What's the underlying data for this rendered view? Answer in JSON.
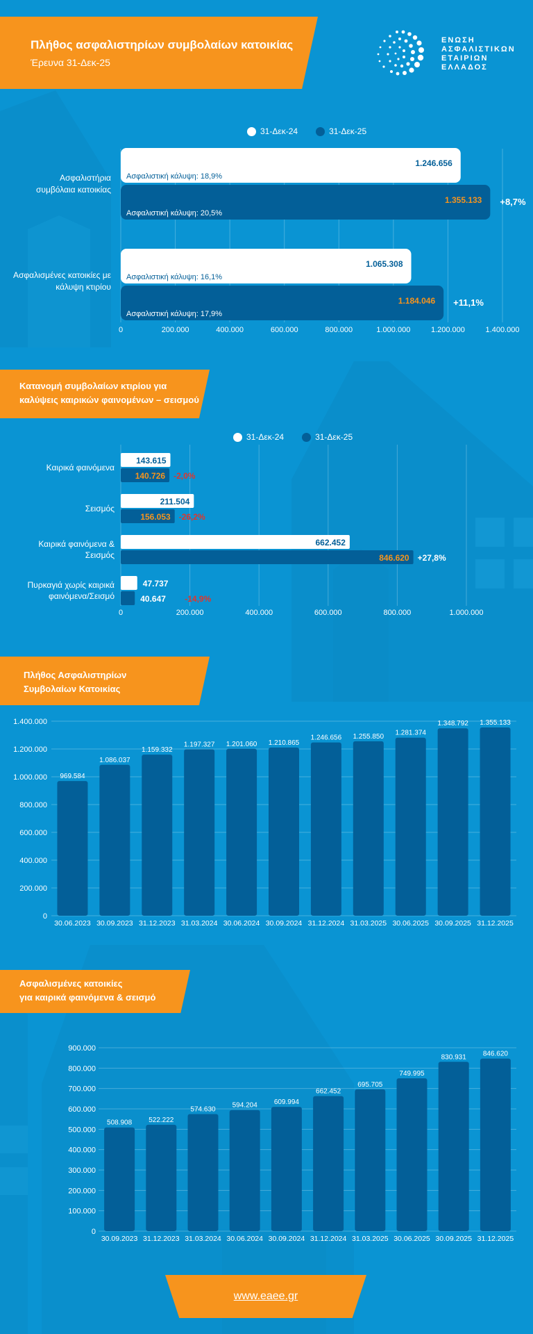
{
  "header": {
    "title": "Πλήθος ασφαλιστηρίων συμβολαίων κατοικίας",
    "subtitle": "Έρευνα 31-Δεκ-25"
  },
  "logo": {
    "lines": [
      "ΕΝΩΣΗ",
      "ΑΣΦΑΛΙΣΤΙΚΩΝ",
      "ΕΤΑΙΡΙΩΝ",
      "ΕΛΛΑΔΟΣ"
    ]
  },
  "colors": {
    "background": "#0a94d3",
    "dark_bar": "#035f98",
    "white_bar": "#ffffff",
    "accent": "#f7941d",
    "negative": "#e0352b",
    "value_orange": "#f7941d"
  },
  "sections": {
    "s2_title_1": "Κατανομή συμβολαίων κτιρίου για",
    "s2_title_2": "καλύψεις καιρικών φαινομένων – σεισμού",
    "s3_title_1": "Πλήθος Ασφαλιστηρίων",
    "s3_title_2": "Συμβολαίων Κατοικίας",
    "s4_title_1": "Ασφαλισμένες κατοικίες",
    "s4_title_2": "για καιρικά φαινόμενα & σεισμό"
  },
  "legend": {
    "series1": "31-Δεκ-24",
    "series2": "31-Δεκ-25"
  },
  "footer": {
    "link": "www.eaee.gr"
  },
  "chart_data": [
    {
      "type": "bar",
      "orientation": "horizontal",
      "categories": [
        [
          "Ασφαλιστήρια",
          "συμβόλαια κατοικίας"
        ],
        [
          "Ασφαλισμένες κατοικίες με",
          "κάλυψη κτιρίου"
        ]
      ],
      "series": [
        {
          "name": "31-Δεκ-24",
          "values": [
            1246656,
            1065308
          ],
          "value_labels": [
            "1.246.656",
            "1.065.308"
          ],
          "coverage": [
            "Ασφαλιστική κάλυψη: 18,9%",
            "Ασφαλιστική κάλυψη: 16,1%"
          ]
        },
        {
          "name": "31-Δεκ-25",
          "values": [
            1355133,
            1184046
          ],
          "value_labels": [
            "1.355.133",
            "1.184.046"
          ],
          "coverage": [
            "Ασφαλιστική κάλυψη: 20,5%",
            "Ασφαλιστική κάλυψη: 17,9%"
          ]
        }
      ],
      "changes": [
        "+8,7%",
        "+11,1%"
      ],
      "xlim": [
        0,
        1400000
      ],
      "ticks": [
        "0",
        "200.000",
        "400.000",
        "600.000",
        "800.000",
        "1.000.000",
        "1.200.000",
        "1.400.000"
      ],
      "tick_values": [
        0,
        200000,
        400000,
        600000,
        800000,
        1000000,
        1200000,
        1400000
      ],
      "grid": true
    },
    {
      "type": "bar",
      "orientation": "horizontal",
      "categories": [
        [
          "Καιρικά φαινόμενα"
        ],
        [
          "Σεισμός"
        ],
        [
          "Καιρικά φαινόμενα &",
          "Σεισμός"
        ],
        [
          "Πυρκαγιά χωρίς καιρικά",
          "φαινόμενα/Σεισμό"
        ]
      ],
      "series": [
        {
          "name": "31-Δεκ-24",
          "values": [
            143615,
            211504,
            662452,
            47737
          ],
          "value_labels": [
            "143.615",
            "211.504",
            "662.452",
            "47.737"
          ]
        },
        {
          "name": "31-Δεκ-25",
          "values": [
            140726,
            156053,
            846620,
            40647
          ],
          "value_labels": [
            "140.726",
            "156.053",
            "846.620",
            "40.647"
          ]
        }
      ],
      "changes": [
        "-2,0%",
        "-26,2%",
        "+27,8%",
        "-14,9%"
      ],
      "xlim": [
        0,
        1000000
      ],
      "ticks": [
        "0",
        "200.000",
        "400.000",
        "600.000",
        "800.000",
        "1.000.000"
      ],
      "tick_values": [
        0,
        200000,
        400000,
        600000,
        800000,
        1000000
      ],
      "grid": true
    },
    {
      "type": "bar",
      "categories": [
        "30.06.2023",
        "30.09.2023",
        "31.12.2023",
        "31.03.2024",
        "30.06.2024",
        "30.09.2024",
        "31.12.2024",
        "31.03.2025",
        "30.06.2025",
        "30.09.2025",
        "31.12.2025"
      ],
      "values": [
        969584,
        1086037,
        1159332,
        1197327,
        1201060,
        1210865,
        1246656,
        1255850,
        1281374,
        1348792,
        1355133
      ],
      "value_labels": [
        "969.584",
        "1.086.037",
        "1.159.332",
        "1.197.327",
        "1.201.060",
        "1.210.865",
        "1.246.656",
        "1.255.850",
        "1.281.374",
        "1.348.792",
        "1.355.133"
      ],
      "ylim": [
        0,
        1400000
      ],
      "ticks": [
        "0",
        "200.000",
        "400.000",
        "600.000",
        "800.000",
        "1.000.000",
        "1.200.000",
        "1.400.000"
      ],
      "tick_values": [
        0,
        200000,
        400000,
        600000,
        800000,
        1000000,
        1200000,
        1400000
      ],
      "grid": true
    },
    {
      "type": "bar",
      "categories": [
        "30.09.2023",
        "31.12.2023",
        "31.03.2024",
        "30.06.2024",
        "30.09.2024",
        "31.12.2024",
        "31.03.2025",
        "30.06.2025",
        "30.09.2025",
        "31.12.2025"
      ],
      "values": [
        508908,
        522222,
        574630,
        594204,
        609994,
        662452,
        695705,
        749995,
        830931,
        846620
      ],
      "value_labels": [
        "508.908",
        "522.222",
        "574.630",
        "594.204",
        "609.994",
        "662.452",
        "695.705",
        "749.995",
        "830.931",
        "846.620"
      ],
      "ylim": [
        0,
        900000
      ],
      "ticks": [
        "0",
        "100.000",
        "200.000",
        "300.000",
        "400.000",
        "500.000",
        "600.000",
        "700.000",
        "800.000",
        "900.000"
      ],
      "tick_values": [
        0,
        100000,
        200000,
        300000,
        400000,
        500000,
        600000,
        700000,
        800000,
        900000
      ],
      "grid": true
    }
  ]
}
